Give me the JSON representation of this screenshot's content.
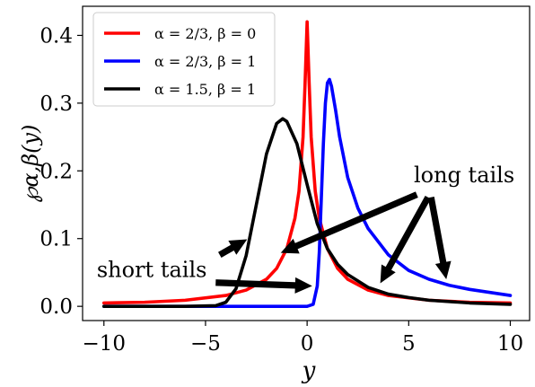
{
  "chart_data": {
    "type": "line",
    "xlabel": "y",
    "ylabel": "℘α,β(y)",
    "xlim": [
      -11.05,
      10.95
    ],
    "ylim": [
      -0.021,
      0.443
    ],
    "xticks": [
      -10,
      -5,
      0,
      5,
      10
    ],
    "xtick_labels": [
      "−10",
      "−5",
      "0",
      "5",
      "10"
    ],
    "yticks": [
      0.0,
      0.1,
      0.2,
      0.3,
      0.4
    ],
    "ytick_labels": [
      "0.0",
      "0.1",
      "0.2",
      "0.3",
      "0.4"
    ],
    "grid": false,
    "legend_position": "upper-left",
    "series": [
      {
        "name": "α = 2/3, β = 0",
        "color": "#ff0000",
        "x": [
          -10,
          -8,
          -6,
          -4,
          -3,
          -2,
          -1.5,
          -1,
          -0.6,
          -0.4,
          -0.2,
          -0.1,
          0,
          0.1,
          0.2,
          0.4,
          0.6,
          1,
          1.5,
          2,
          3,
          4,
          6,
          8,
          10
        ],
        "y": [
          0.005,
          0.006,
          0.009,
          0.016,
          0.024,
          0.04,
          0.056,
          0.085,
          0.13,
          0.17,
          0.25,
          0.33,
          0.42,
          0.33,
          0.25,
          0.17,
          0.13,
          0.085,
          0.056,
          0.04,
          0.024,
          0.016,
          0.009,
          0.006,
          0.005
        ]
      },
      {
        "name": "α = 2/3, β = 1",
        "color": "#0000ff",
        "x": [
          -10,
          -4,
          0,
          0.3,
          0.5,
          0.6,
          0.7,
          0.8,
          0.9,
          1.0,
          1.1,
          1.2,
          1.4,
          1.6,
          2,
          2.5,
          3,
          4,
          5,
          6,
          7,
          8,
          10
        ],
        "y": [
          0,
          0,
          0,
          0.003,
          0.03,
          0.08,
          0.16,
          0.24,
          0.3,
          0.33,
          0.335,
          0.325,
          0.29,
          0.25,
          0.19,
          0.145,
          0.115,
          0.076,
          0.053,
          0.04,
          0.031,
          0.025,
          0.016
        ]
      },
      {
        "name": "α = 1.5, β = 1",
        "color": "#000000",
        "x": [
          -10,
          -6,
          -4.5,
          -4,
          -3.5,
          -3,
          -2.5,
          -2,
          -1.5,
          -1.2,
          -1,
          -0.5,
          0,
          0.5,
          1,
          1.5,
          2,
          3,
          4,
          5,
          6,
          8,
          10
        ],
        "y": [
          0,
          0,
          0.001,
          0.006,
          0.026,
          0.075,
          0.15,
          0.225,
          0.27,
          0.277,
          0.273,
          0.24,
          0.18,
          0.122,
          0.085,
          0.062,
          0.047,
          0.028,
          0.018,
          0.013,
          0.009,
          0.005,
          0.003
        ]
      }
    ],
    "annotations": [
      {
        "text": "long tails",
        "text_anchor": [
          5.25,
          0.183
        ],
        "arrow_from_data": [
          [
            5.4,
            0.165
          ],
          [
            5.95,
            0.161
          ],
          [
            6.1,
            0.161
          ]
        ],
        "arrow_to_data": [
          [
            -1.3,
            0.079
          ],
          [
            3.6,
            0.034
          ],
          [
            6.85,
            0.04
          ]
        ]
      },
      {
        "text": "short tails",
        "text_anchor": [
          -10.35,
          0.043
        ],
        "arrow_from_data": [
          [
            -4.3,
            0.076
          ],
          [
            -4.5,
            0.035
          ]
        ],
        "arrow_to_data": [
          [
            -2.95,
            0.099
          ],
          [
            0.25,
            0.03
          ]
        ]
      }
    ]
  }
}
